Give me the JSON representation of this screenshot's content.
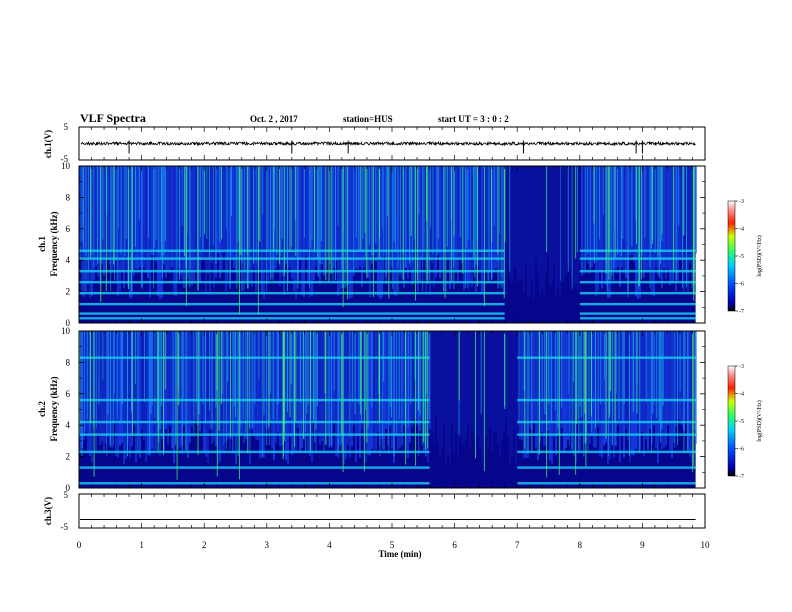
{
  "header": {
    "title": "VLF Spectra",
    "date": "Oct. 2 , 2017",
    "station": "station=HUS",
    "start": "start UT = 3 : 0 : 2"
  },
  "colors": {
    "spectro_background": "#06068c",
    "noise_blue": "#1a4cff",
    "noise_cyan": "#19c8f0",
    "signal_green": "#3cf07a",
    "waveform": "#000000"
  },
  "chart_data": [
    {
      "type": "line",
      "name": "waveform-ch1",
      "ylabel": "ch.1(V)",
      "ylim": [
        -5,
        5
      ],
      "yticks": [
        5,
        -5
      ],
      "xlim": [
        0,
        10
      ],
      "baseline_value": 0,
      "spikes_min": [
        0.8,
        3.4,
        4.3,
        7.1,
        8.9,
        9.0
      ]
    },
    {
      "type": "heatmap",
      "name": "spectrogram-ch1",
      "xlabel": "",
      "ylabel": "ch.1\nFrequency (kHz)",
      "ylim": [
        0,
        10
      ],
      "yticks": [
        0,
        2,
        4,
        6,
        8,
        10
      ],
      "xlim": [
        0,
        10
      ],
      "data_end_min": 9.85,
      "harmonic_bands_khz": [
        0.3,
        0.6,
        1.2,
        1.9,
        2.6,
        3.3,
        4.1,
        4.6
      ],
      "dark_interval_min": [
        6.8,
        8.0
      ],
      "colorbar": {
        "label": "log(PSD)(V²/Hz)",
        "range": [
          -7,
          -3
        ],
        "ticks": [
          -3,
          -4,
          -5,
          -6,
          -7
        ]
      }
    },
    {
      "type": "heatmap",
      "name": "spectrogram-ch2",
      "ylabel": "ch.2\nFrequency (kHz)",
      "ylim": [
        0,
        10
      ],
      "yticks": [
        0,
        2,
        4,
        6,
        8,
        10
      ],
      "xlim": [
        0,
        10
      ],
      "data_end_min": 9.85,
      "harmonic_bands_khz": [
        0.3,
        1.3,
        2.3,
        3.4,
        4.2,
        5.6,
        8.3
      ],
      "dark_interval_min": [
        5.6,
        7.0
      ],
      "colorbar": {
        "label": "log(PSD)(V²/Hz)",
        "range": [
          -7,
          -3
        ],
        "ticks": [
          -3,
          -4,
          -5,
          -6,
          -7
        ]
      }
    },
    {
      "type": "line",
      "name": "waveform-ch3",
      "ylabel": "ch.3(V)",
      "xlabel": "Time (min)",
      "ylim": [
        -5,
        5
      ],
      "yticks": [
        5,
        -5
      ],
      "xlim": [
        0,
        10
      ],
      "xticks": [
        0,
        1,
        2,
        3,
        4,
        5,
        6,
        7,
        8,
        9,
        10
      ],
      "baseline_value": -2.5
    }
  ]
}
